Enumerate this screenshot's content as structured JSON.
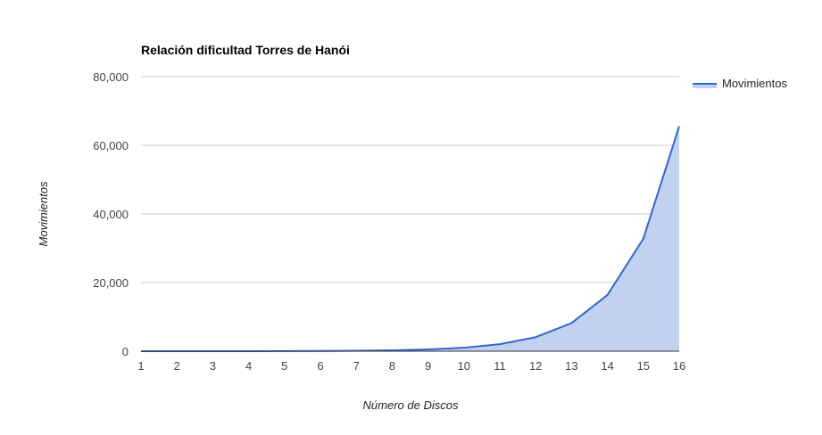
{
  "chart_data": {
    "type": "area",
    "title": "Relación dificultad Torres de Hanói",
    "xlabel": "Número de Discos",
    "ylabel": "Movimientos",
    "x": [
      1,
      2,
      3,
      4,
      5,
      6,
      7,
      8,
      9,
      10,
      11,
      12,
      13,
      14,
      15,
      16
    ],
    "series": [
      {
        "name": "Movimientos",
        "values": [
          1,
          3,
          7,
          15,
          31,
          63,
          127,
          255,
          511,
          1023,
          2047,
          4095,
          8191,
          16383,
          32767,
          65535
        ],
        "color": "#3366cc",
        "fill_color": "#c3d1f0"
      }
    ],
    "xlim": [
      1,
      16
    ],
    "ylim": [
      0,
      80000
    ],
    "y_ticks": [
      0,
      20000,
      40000,
      60000,
      80000
    ],
    "y_tick_labels": [
      "0",
      "20,000",
      "40,000",
      "60,000",
      "80,000"
    ],
    "x_tick_labels": [
      "1",
      "2",
      "3",
      "4",
      "5",
      "6",
      "7",
      "8",
      "9",
      "10",
      "11",
      "12",
      "13",
      "14",
      "15",
      "16"
    ],
    "grid": true,
    "legend": "right",
    "grid_color": "#cccccc",
    "axis_color": "#333333"
  }
}
